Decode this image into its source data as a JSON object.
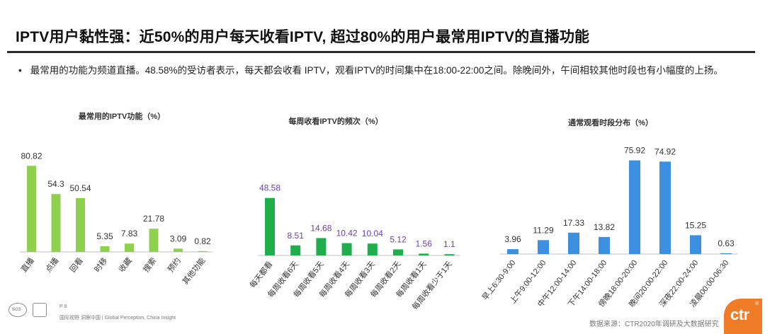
{
  "header": {
    "title": "IPTV用户黏性强：近50%的用户每天收看IPTV, 超过80%的用户最常用IPTV的直播功能",
    "bullet": "最常用的功能为频道直播。48.58%的受访者表示，每天都会收看 IPTV，观看IPTV的时间集中在18:00-22:00之间。除晚间外，午间相较其他时段也有小幅度的上扬。",
    "bullet_mark": "•"
  },
  "footer": {
    "page": "P 8",
    "tagline": "国际视野  洞察中国  |  Global Perception,  China Insight",
    "source": "数据来源：CTR2020年调研及大数据研究",
    "logo_text": "ctr",
    "logo_mark": "®",
    "badge_text": "SGS"
  },
  "colors": {
    "chart1": "#8fd14f",
    "chart2": "#1fae4b",
    "chart2_label": "#6b3fa0",
    "chart3": "#3d8fe0",
    "axis": "#bfbfbf",
    "logo": "#f07c28"
  },
  "chart_data": [
    {
      "type": "bar",
      "title": "最常用的IPTV功能（%）",
      "categories": [
        "直播",
        "点播",
        "回看",
        "时移",
        "收藏",
        "搜索",
        "预约",
        "其他功能"
      ],
      "values": [
        80.82,
        54.3,
        50.54,
        5.35,
        7.83,
        21.78,
        3.09,
        0.82
      ],
      "ylim": [
        0,
        85
      ],
      "grid": false,
      "legend": "none"
    },
    {
      "type": "bar",
      "title": "每周收看IPTV的频次（%）",
      "categories": [
        "每天都看",
        "每周收看6天",
        "每周收看5天",
        "每周收看4天",
        "每周收看3天",
        "每周收看2天",
        "每周收看1天",
        "每周收看少于1天"
      ],
      "values": [
        48.58,
        8.51,
        14.68,
        10.42,
        10.04,
        5.12,
        1.56,
        1.1
      ],
      "ylim": [
        0,
        55
      ],
      "grid": false,
      "legend": "none"
    },
    {
      "type": "bar",
      "title": "通常观看时段分布（%）",
      "categories": [
        "早上6:30-9:00",
        "上午9:00-12:00",
        "中午12:00-14:00",
        "下午14:00-18:00",
        "傍晚18:00-20:00",
        "晚间20:00-22:00",
        "深夜22:00-24:00",
        "凌晨00:00-06:30"
      ],
      "values": [
        3.96,
        11.29,
        17.33,
        13.82,
        75.92,
        74.92,
        15.25,
        0.63
      ],
      "ylim": [
        0,
        78
      ],
      "grid": false,
      "legend": "none"
    }
  ]
}
